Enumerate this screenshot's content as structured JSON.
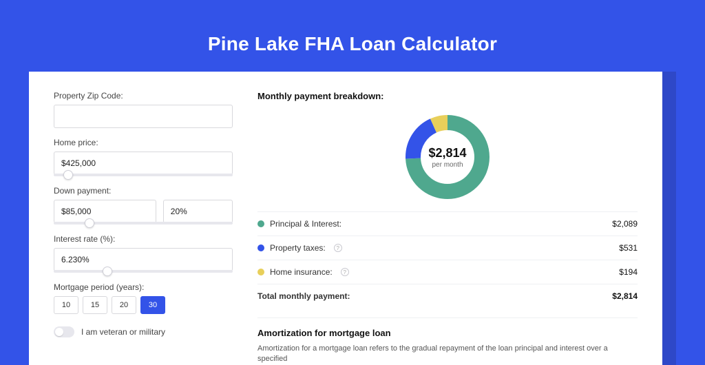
{
  "page": {
    "title": "Pine Lake FHA Loan Calculator",
    "background_color": "#3353e8",
    "shadow_color": "#2e48c8",
    "card_color": "#ffffff"
  },
  "form": {
    "zip": {
      "label": "Property Zip Code:",
      "value": ""
    },
    "home_price": {
      "label": "Home price:",
      "value": "$425,000",
      "slider_pct": 8
    },
    "down_payment": {
      "label": "Down payment:",
      "amount": "$85,000",
      "percent": "20%",
      "slider_pct": 20
    },
    "interest_rate": {
      "label": "Interest rate (%):",
      "value": "6.230%",
      "slider_pct": 30
    },
    "mortgage_period": {
      "label": "Mortgage period (years):",
      "options": [
        "10",
        "15",
        "20",
        "30"
      ],
      "active_index": 3
    },
    "veteran": {
      "label": "I am veteran or military",
      "checked": false
    }
  },
  "breakdown": {
    "heading": "Monthly payment breakdown:",
    "center_amount": "$2,814",
    "center_sub": "per month",
    "items": [
      {
        "label": "Principal & Interest:",
        "value": "$2,089",
        "color": "#4fa88e",
        "info": false
      },
      {
        "label": "Property taxes:",
        "value": "$531",
        "color": "#3353e8",
        "info": true
      },
      {
        "label": "Home insurance:",
        "value": "$194",
        "color": "#e8cf5a",
        "info": true
      }
    ],
    "total": {
      "label": "Total monthly payment:",
      "value": "$2,814"
    },
    "donut": {
      "type": "donut",
      "radius": 50,
      "stroke_width": 22,
      "slices": [
        {
          "fraction": 0.742,
          "color": "#4fa88e"
        },
        {
          "fraction": 0.189,
          "color": "#3353e8"
        },
        {
          "fraction": 0.069,
          "color": "#e8cf5a"
        }
      ]
    }
  },
  "amortization": {
    "heading": "Amortization for mortgage loan",
    "text": "Amortization for a mortgage loan refers to the gradual repayment of the loan principal and interest over a specified"
  }
}
